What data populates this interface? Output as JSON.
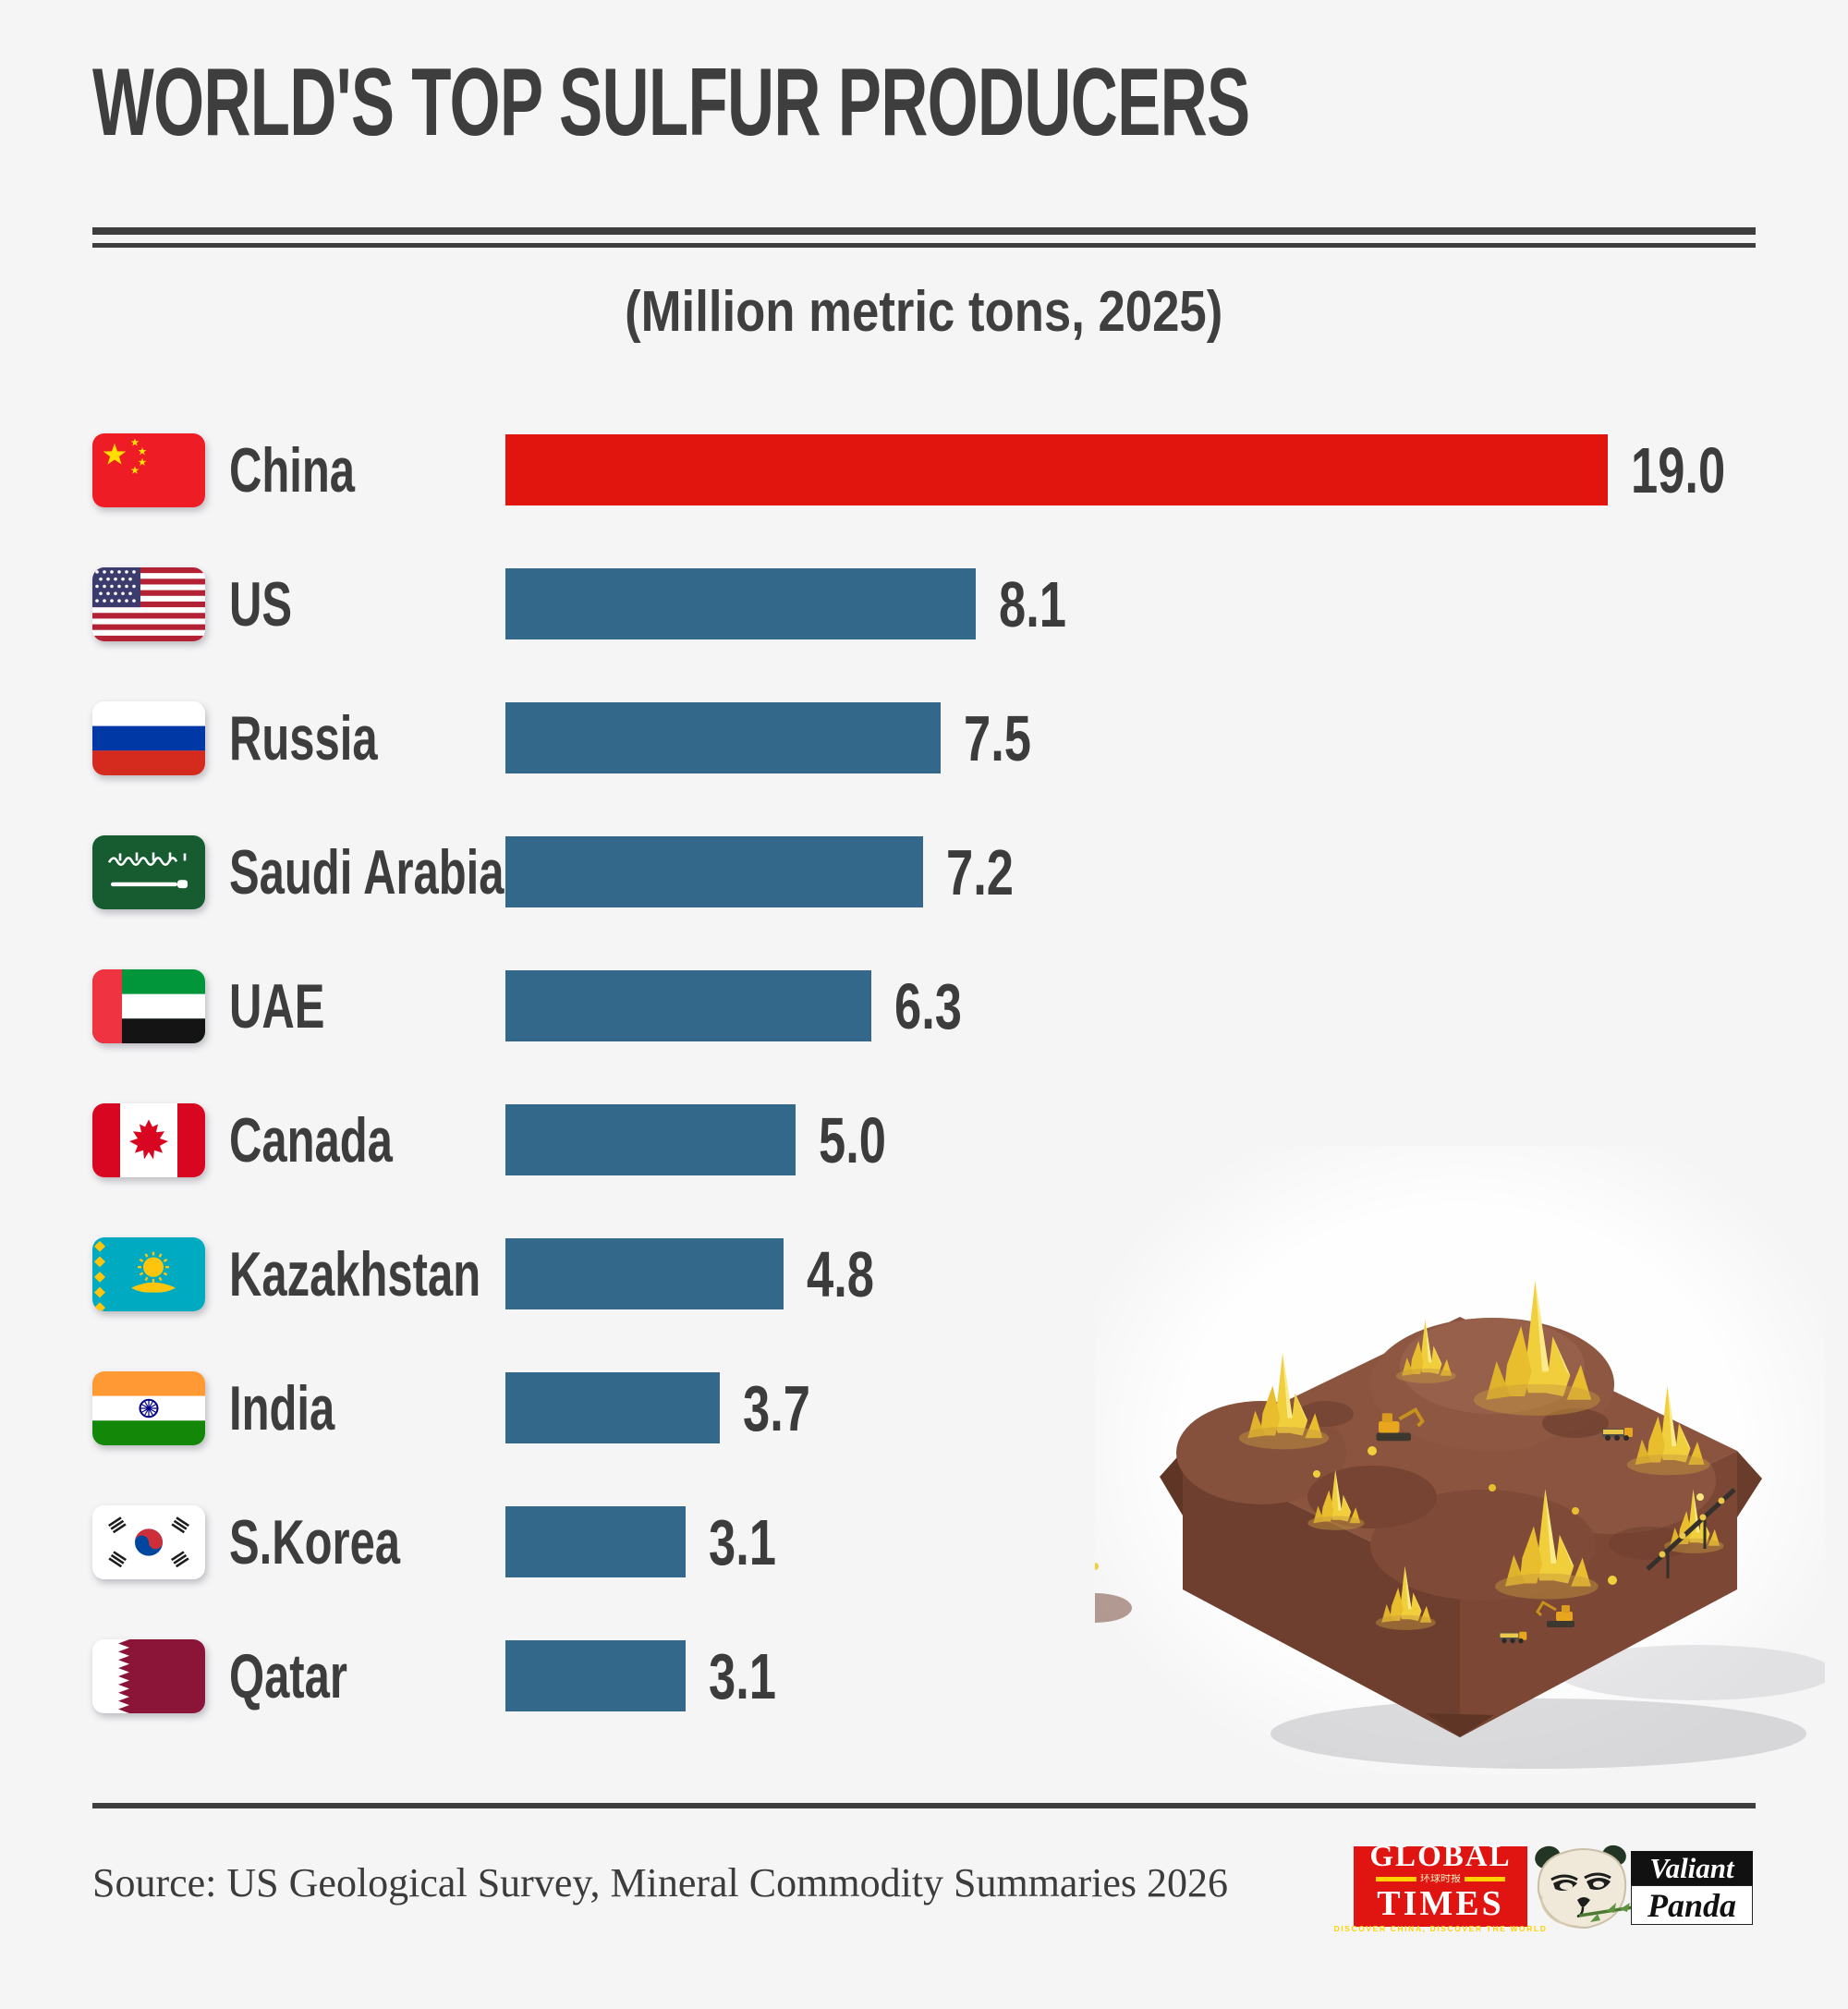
{
  "title": "WORLD'S TOP SULFUR PRODUCERS",
  "subtitle": "(Million metric tons, 2025)",
  "chart_data": {
    "type": "bar",
    "orientation": "horizontal",
    "title": "WORLD'S TOP SULFUR PRODUCERS",
    "subtitle": "(Million metric tons, 2025)",
    "unit": "Million metric tons",
    "year": "2025",
    "xlim": [
      0,
      19
    ],
    "grid": false,
    "categories": [
      "China",
      "US",
      "Russia",
      "Saudi Arabia",
      "UAE",
      "Canada",
      "Kazakhstan",
      "India",
      "S.Korea",
      "Qatar"
    ],
    "values": [
      19.0,
      8.1,
      7.5,
      7.2,
      6.3,
      5.0,
      4.8,
      3.7,
      3.1,
      3.1
    ],
    "value_labels": [
      "19.0",
      "8.1",
      "7.5",
      "7.2",
      "6.3",
      "5.0",
      "4.8",
      "3.7",
      "3.1",
      "3.1"
    ],
    "flag_icons": [
      "cn",
      "us",
      "ru",
      "sa",
      "ae",
      "ca",
      "kz",
      "in",
      "kr",
      "qa"
    ],
    "bar_color": "#33688B",
    "highlight_color": "#E2150E",
    "highlight_index": 0
  },
  "colors": {
    "background": "#F5F5F6",
    "text": "#3E3E3E",
    "rule": "#3E3E3E"
  },
  "footer": {
    "source": "Source: US Geological Survey, Mineral Commodity Summaries 2026"
  },
  "logos": {
    "global_times": {
      "line1": "GLOBAL",
      "line2": "TIMES",
      "chinese": "环球时报",
      "tagline": "DISCOVER CHINA, DISCOVER THE WORLD"
    },
    "valiant_panda": {
      "line1": "Valiant",
      "line2": "Panda"
    }
  },
  "illustration": {
    "description": "sulfur mining diorama with yellow crystals"
  }
}
